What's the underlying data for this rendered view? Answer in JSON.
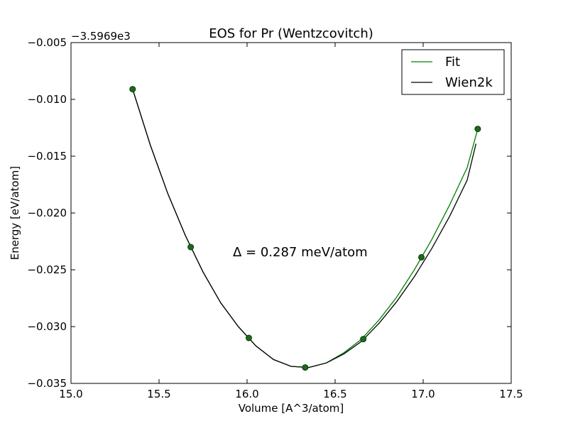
{
  "chart_data": {
    "type": "line",
    "title": "EOS for Pr (Wentzcovitch)",
    "xlabel": "Volume [A^3/atom]",
    "ylabel": "Energy [eV/atom]",
    "offset_label": "−3.5969e3",
    "annotation": "Δ = 0.287 meV/atom",
    "xlim": [
      15.0,
      17.5
    ],
    "ylim": [
      -0.035,
      -0.005
    ],
    "xticks": [
      15.0,
      15.5,
      16.0,
      16.5,
      17.0,
      17.5
    ],
    "xtick_labels": [
      "15.0",
      "15.5",
      "16.0",
      "16.5",
      "17.0",
      "17.5"
    ],
    "yticks": [
      -0.005,
      -0.01,
      -0.015,
      -0.02,
      -0.025,
      -0.03,
      -0.035
    ],
    "ytick_labels": [
      "−0.005",
      "−0.010",
      "−0.015",
      "−0.020",
      "−0.025",
      "−0.030",
      "−0.035"
    ],
    "legend_position": "top-right",
    "grid": false,
    "points": {
      "x": [
        15.35,
        15.68,
        16.01,
        16.33,
        16.66,
        16.99,
        17.31
      ],
      "y": [
        -0.0091,
        -0.023,
        -0.031,
        -0.0336,
        -0.0311,
        -0.0239,
        -0.0126
      ],
      "color": "#1a6b1a"
    },
    "series": [
      {
        "name": "Fit",
        "color": "#008000",
        "x": [
          15.35,
          15.45,
          15.55,
          15.65,
          15.75,
          15.85,
          15.95,
          16.05,
          16.15,
          16.25,
          16.35,
          16.45,
          16.55,
          16.65,
          16.75,
          16.85,
          16.95,
          17.05,
          17.15,
          17.25,
          17.31
        ],
        "y": [
          -0.0091,
          -0.014,
          -0.0183,
          -0.022,
          -0.0252,
          -0.0279,
          -0.03,
          -0.0317,
          -0.0329,
          -0.0335,
          -0.0336,
          -0.0332,
          -0.0323,
          -0.0311,
          -0.0294,
          -0.0274,
          -0.025,
          -0.0223,
          -0.0193,
          -0.016,
          -0.0126
        ]
      },
      {
        "name": "Wien2k",
        "color": "#000000",
        "x": [
          15.35,
          15.45,
          15.55,
          15.65,
          15.75,
          15.85,
          15.95,
          16.05,
          16.15,
          16.25,
          16.35,
          16.45,
          16.55,
          16.65,
          16.75,
          16.85,
          16.95,
          17.05,
          17.15,
          17.25,
          17.3
        ],
        "y": [
          -0.0091,
          -0.014,
          -0.0183,
          -0.022,
          -0.0252,
          -0.0279,
          -0.03,
          -0.0317,
          -0.0329,
          -0.0335,
          -0.0336,
          -0.0332,
          -0.0324,
          -0.0313,
          -0.0297,
          -0.0278,
          -0.0256,
          -0.0231,
          -0.0203,
          -0.0171,
          -0.0139
        ]
      }
    ]
  }
}
